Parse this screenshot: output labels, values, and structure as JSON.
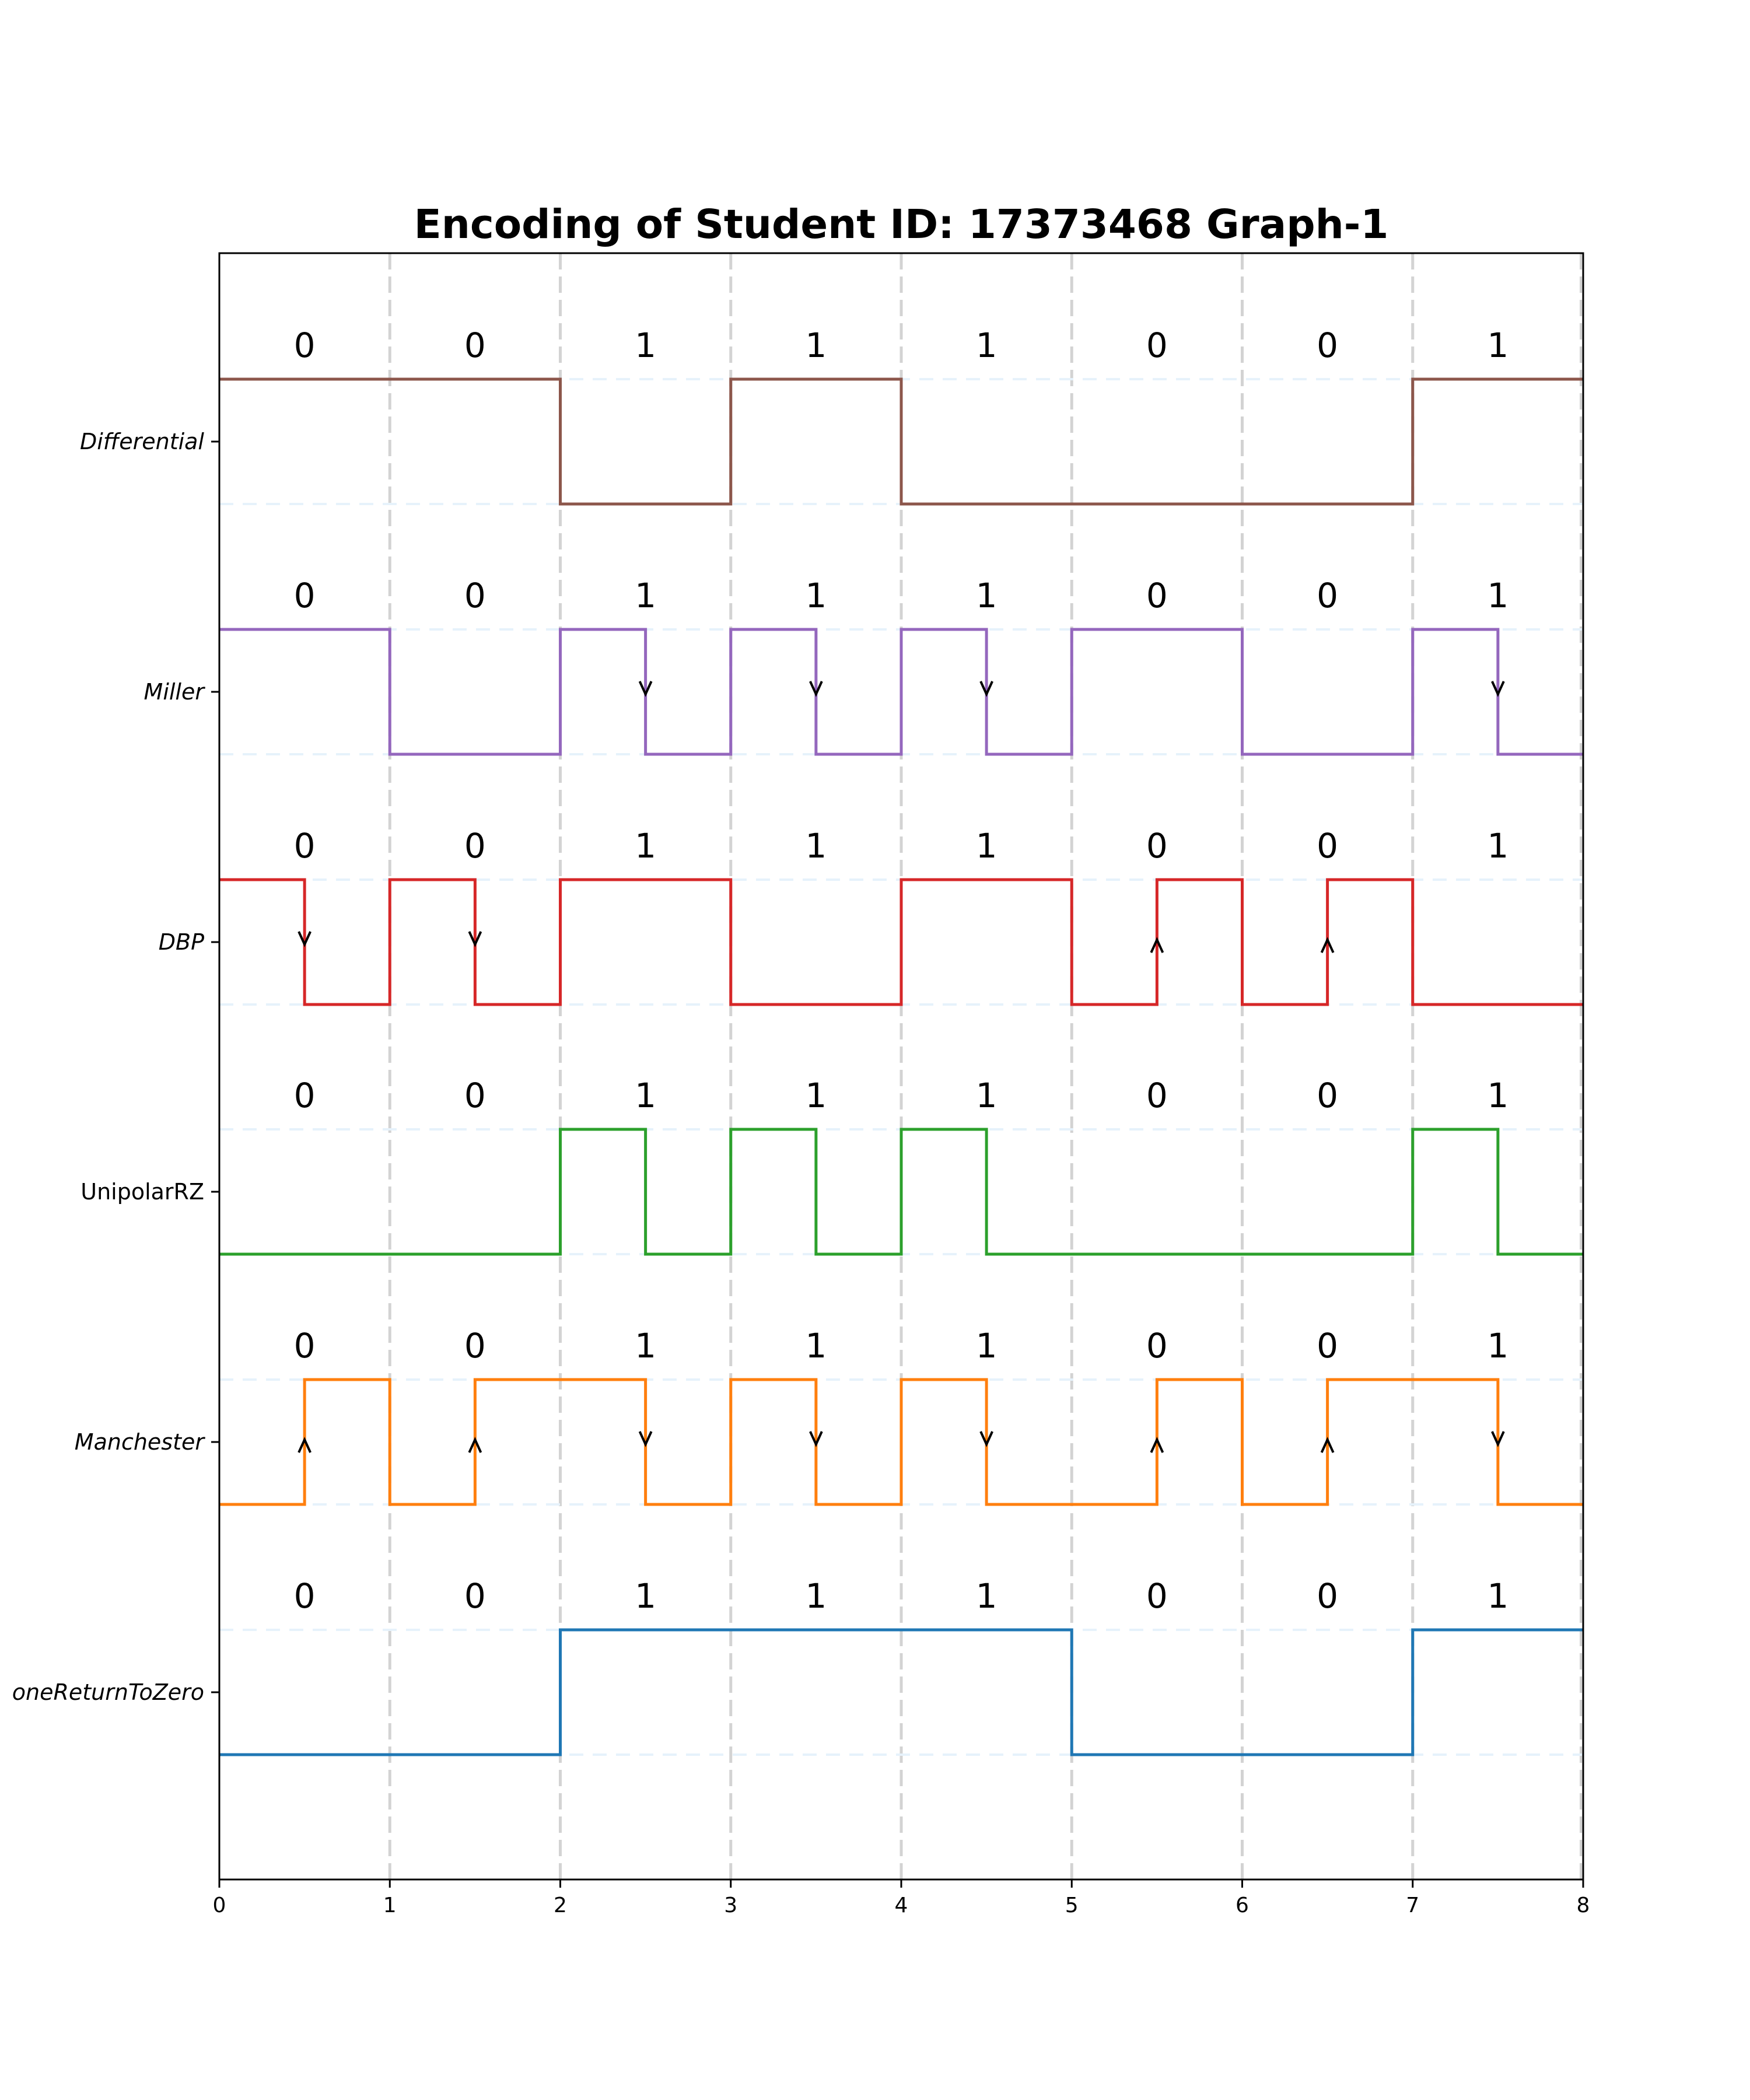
{
  "chart_data": {
    "type": "line",
    "subtype": "step / digital line-coding waveforms",
    "title": "Encoding of Student ID: 17373468 Graph-1",
    "xlabel": "",
    "ylabel": "",
    "xlim": [
      0,
      8
    ],
    "x_ticks": [
      "0",
      "1",
      "2",
      "3",
      "4",
      "5",
      "6",
      "7",
      "8"
    ],
    "grid": {
      "vertical": "dashed light gray at integer x",
      "horizontal": "dashed pale blue at each waveform high/low level"
    },
    "bits": [
      "0",
      "0",
      "1",
      "1",
      "1",
      "0",
      "0",
      "1"
    ],
    "series": [
      {
        "name": "Differential",
        "italic": true,
        "color": "#8c564b",
        "levels": [
          [
            0,
            1
          ],
          [
            2,
            0
          ],
          [
            3,
            1
          ],
          [
            4,
            0
          ],
          [
            7,
            1
          ],
          [
            8,
            1
          ]
        ],
        "arrows": []
      },
      {
        "name": "Miller",
        "italic": true,
        "color": "#9467bd",
        "levels": [
          [
            0,
            1
          ],
          [
            1,
            0
          ],
          [
            2,
            1
          ],
          [
            2.5,
            0
          ],
          [
            3,
            1
          ],
          [
            3.5,
            0
          ],
          [
            4,
            1
          ],
          [
            4.5,
            0
          ],
          [
            5,
            1
          ],
          [
            6,
            0
          ],
          [
            7,
            1
          ],
          [
            7.5,
            0
          ],
          [
            8,
            0
          ]
        ],
        "arrows": [
          {
            "x": 2.5,
            "dir": "down"
          },
          {
            "x": 3.5,
            "dir": "down"
          },
          {
            "x": 4.5,
            "dir": "down"
          },
          {
            "x": 7.5,
            "dir": "down"
          }
        ]
      },
      {
        "name": "DBP",
        "italic": true,
        "color": "#d62728",
        "levels": [
          [
            0,
            1
          ],
          [
            0.5,
            0
          ],
          [
            1,
            1
          ],
          [
            1.5,
            0
          ],
          [
            2,
            1
          ],
          [
            3,
            0
          ],
          [
            4,
            1
          ],
          [
            5,
            0
          ],
          [
            5.5,
            1
          ],
          [
            6,
            0
          ],
          [
            6.5,
            1
          ],
          [
            7,
            0
          ],
          [
            8,
            0
          ]
        ],
        "arrows": [
          {
            "x": 0.5,
            "dir": "down"
          },
          {
            "x": 1.5,
            "dir": "down"
          },
          {
            "x": 5.5,
            "dir": "up"
          },
          {
            "x": 6.5,
            "dir": "up"
          }
        ]
      },
      {
        "name": "UnipolarRZ",
        "italic": false,
        "color": "#2ca02c",
        "levels": [
          [
            0,
            0
          ],
          [
            2,
            1
          ],
          [
            2.5,
            0
          ],
          [
            3,
            1
          ],
          [
            3.5,
            0
          ],
          [
            4,
            1
          ],
          [
            4.5,
            0
          ],
          [
            7,
            1
          ],
          [
            7.5,
            0
          ],
          [
            8,
            0
          ]
        ],
        "arrows": []
      },
      {
        "name": "Manchester",
        "italic": true,
        "color": "#ff7f0e",
        "levels": [
          [
            0,
            0
          ],
          [
            0.5,
            1
          ],
          [
            1,
            0
          ],
          [
            1.5,
            1
          ],
          [
            2.5,
            0
          ],
          [
            3,
            1
          ],
          [
            3.5,
            0
          ],
          [
            4,
            1
          ],
          [
            4.5,
            0
          ],
          [
            5.5,
            1
          ],
          [
            6,
            0
          ],
          [
            6.5,
            1
          ],
          [
            7.5,
            0
          ],
          [
            8,
            0
          ]
        ],
        "arrows": [
          {
            "x": 0.5,
            "dir": "up"
          },
          {
            "x": 1.5,
            "dir": "up"
          },
          {
            "x": 2.5,
            "dir": "down"
          },
          {
            "x": 3.5,
            "dir": "down"
          },
          {
            "x": 4.5,
            "dir": "down"
          },
          {
            "x": 5.5,
            "dir": "up"
          },
          {
            "x": 6.5,
            "dir": "up"
          },
          {
            "x": 7.5,
            "dir": "down"
          }
        ]
      },
      {
        "name": "NoneReturnToZero",
        "display_label": "oneReturnToZero",
        "italic": true,
        "color": "#1f77b4",
        "levels": [
          [
            0,
            0
          ],
          [
            2,
            1
          ],
          [
            5,
            0
          ],
          [
            7,
            1
          ],
          [
            8,
            1
          ]
        ],
        "arrows": []
      }
    ],
    "layout": {
      "axes": {
        "left": 376,
        "right": 2714,
        "top": 434,
        "bottom": 3222
      },
      "row_centers": [
        757,
        1186,
        1615,
        2043,
        2472,
        2901
      ],
      "half_height": 107,
      "bit_label_offset": -165
    },
    "colors": {
      "grid_vertical": "#d3d3d3",
      "grid_horizontal": "#e6f2fb",
      "axis": "#000000",
      "arrow": "#000000"
    }
  }
}
